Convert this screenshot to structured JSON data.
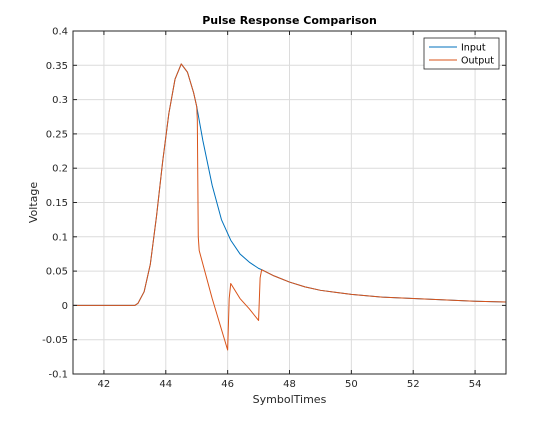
{
  "chart_data": {
    "type": "line",
    "title": "Pulse Response Comparison",
    "xlabel": "SymbolTimes",
    "ylabel": "Voltage",
    "xlim": [
      41,
      55
    ],
    "ylim": [
      -0.1,
      0.4
    ],
    "xticks": [
      42,
      44,
      46,
      48,
      50,
      52,
      54
    ],
    "yticks": [
      -0.1,
      -0.05,
      0,
      0.05,
      0.1,
      0.15,
      0.2,
      0.25,
      0.3,
      0.35,
      0.4
    ],
    "xtick_labels": [
      "42",
      "44",
      "46",
      "48",
      "50",
      "52",
      "54"
    ],
    "ytick_labels": [
      "-0.1",
      "-0.05",
      "0",
      "0.05",
      "0.1",
      "0.15",
      "0.2",
      "0.25",
      "0.3",
      "0.35",
      "0.4"
    ],
    "grid": true,
    "legend_position": "top-right",
    "series": [
      {
        "name": "Input",
        "color": "#0072BD",
        "x": [
          41,
          42,
          43,
          43.1,
          43.3,
          43.5,
          43.7,
          43.9,
          44.1,
          44.3,
          44.5,
          44.7,
          44.9,
          45.0,
          45.2,
          45.5,
          45.8,
          46.1,
          46.4,
          46.7,
          47.0,
          47.1,
          47.5,
          48.0,
          48.5,
          49.0,
          49.5,
          50.0,
          51.0,
          52.0,
          53.0,
          54.0,
          55.0
        ],
        "y": [
          0,
          0,
          0,
          0.003,
          0.02,
          0.06,
          0.13,
          0.21,
          0.28,
          0.33,
          0.352,
          0.34,
          0.31,
          0.29,
          0.24,
          0.175,
          0.125,
          0.095,
          0.075,
          0.063,
          0.054,
          0.052,
          0.043,
          0.034,
          0.027,
          0.022,
          0.019,
          0.016,
          0.012,
          0.01,
          0.008,
          0.006,
          0.005
        ]
      },
      {
        "name": "Output",
        "color": "#D95319",
        "x": [
          41,
          42,
          43,
          43.1,
          43.3,
          43.5,
          43.7,
          43.9,
          44.1,
          44.3,
          44.5,
          44.7,
          44.9,
          45.0,
          45.02,
          45.05,
          45.08,
          45.5,
          46.0,
          46.05,
          46.1,
          46.4,
          46.7,
          47.0,
          47.05,
          47.1,
          47.5,
          48.0,
          48.5,
          49.0,
          49.5,
          50.0,
          51.0,
          52.0,
          53.0,
          54.0,
          55.0
        ],
        "y": [
          0,
          0,
          0,
          0.003,
          0.02,
          0.06,
          0.13,
          0.21,
          0.28,
          0.33,
          0.352,
          0.34,
          0.31,
          0.29,
          0.27,
          0.1,
          0.08,
          0.01,
          -0.065,
          0.01,
          0.032,
          0.01,
          -0.005,
          -0.022,
          0.04,
          0.052,
          0.043,
          0.034,
          0.027,
          0.022,
          0.019,
          0.016,
          0.012,
          0.01,
          0.008,
          0.006,
          0.005
        ]
      }
    ]
  }
}
